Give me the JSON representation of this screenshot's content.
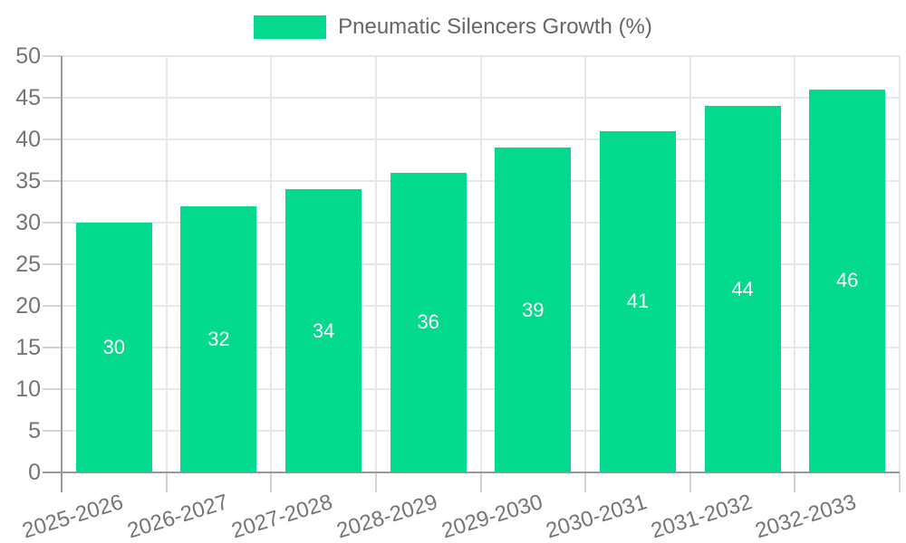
{
  "legend": {
    "label": "Pneumatic Silencers Growth (%)"
  },
  "chart_data": {
    "type": "bar",
    "title": "",
    "series": [
      {
        "name": "Pneumatic Silencers Growth (%)",
        "values": [
          30,
          32,
          34,
          36,
          39,
          41,
          44,
          46
        ]
      }
    ],
    "categories": [
      "2025-2026",
      "2026-2027",
      "2027-2028",
      "2028-2029",
      "2029-2030",
      "2030-2031",
      "2031-2032",
      "2032-2033"
    ],
    "xlabel": "",
    "ylabel": "",
    "ylim": [
      0,
      50
    ],
    "ytick_step": 5,
    "ytick_labels": [
      "0",
      "5",
      "10",
      "15",
      "20",
      "25",
      "30",
      "35",
      "40",
      "45",
      "50"
    ],
    "grid": true,
    "legend_position": "top-center",
    "value_labels": "inside-center",
    "colors": {
      "bar": "#04DA8D",
      "grid": "#e7e7e7",
      "axis_line": "#9b9b9b",
      "tick": "#d2d2d2",
      "axis_label": "#757575",
      "legend_text": "#666666",
      "value_label": "#ffffff",
      "background": "#ffffff"
    }
  }
}
